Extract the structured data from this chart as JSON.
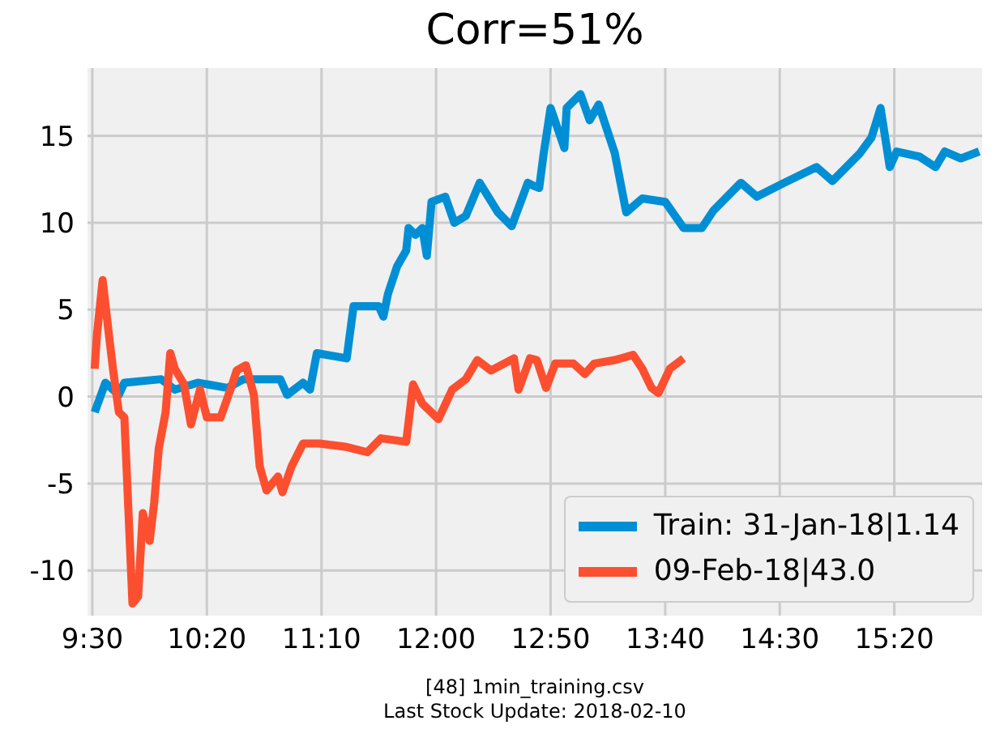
{
  "chart_data": {
    "type": "line",
    "title": "Corr=51%",
    "annotations": [
      "[48] 1min_training.csv",
      "Last Stock Update: 2018-02-10"
    ],
    "xlim": [
      9.465,
      15.972
    ],
    "ylim": [
      -12.6,
      18.9
    ],
    "xticks": [
      {
        "value": 9.5,
        "label": "9:30"
      },
      {
        "value": 10.333,
        "label": "10:20"
      },
      {
        "value": 11.167,
        "label": "11:10"
      },
      {
        "value": 12,
        "label": "12:00"
      },
      {
        "value": 12.833,
        "label": "12:50"
      },
      {
        "value": 13.667,
        "label": "13:40"
      },
      {
        "value": 14.5,
        "label": "14:30"
      },
      {
        "value": 15.333,
        "label": "15:20"
      }
    ],
    "yticks": [
      -10,
      -5,
      0,
      5,
      10,
      15
    ],
    "grid": true,
    "legend": "bottom right",
    "line_style": "solid",
    "series": [
      {
        "name": "Train: 31-Jan-18|1.14",
        "color": "#008fd5",
        "x": [
          9.517,
          9.595,
          9.693,
          9.733,
          10.0,
          10.1,
          10.267,
          10.483,
          10.6,
          10.867,
          10.917,
          11.033,
          11.083,
          11.133,
          11.35,
          11.4,
          11.583,
          11.617,
          11.65,
          11.717,
          11.783,
          11.8,
          11.85,
          11.9,
          11.933,
          11.967,
          12.067,
          12.133,
          12.217,
          12.317,
          12.45,
          12.55,
          12.667,
          12.717,
          12.75,
          12.783,
          12.833,
          12.933,
          12.95,
          13.05,
          13.117,
          13.183,
          13.3,
          13.383,
          13.5,
          13.667,
          13.8,
          13.933,
          14.017,
          14.217,
          14.333,
          14.533,
          14.767,
          14.883,
          15.083,
          15.167,
          15.233,
          15.3,
          15.35,
          15.517,
          15.633,
          15.7,
          15.817,
          15.95
        ],
        "values": [
          -0.9,
          0.8,
          0.1,
          0.8,
          1.0,
          0.4,
          0.8,
          0.5,
          1.0,
          1.0,
          0.1,
          0.8,
          0.4,
          2.5,
          2.2,
          5.2,
          5.2,
          4.6,
          5.9,
          7.5,
          8.4,
          9.7,
          9.3,
          9.7,
          8.1,
          11.2,
          11.5,
          10.0,
          10.4,
          12.3,
          10.6,
          9.8,
          12.3,
          12.1,
          12.0,
          14.0,
          16.6,
          14.3,
          16.6,
          17.4,
          15.9,
          16.8,
          14.0,
          10.6,
          11.4,
          11.2,
          9.7,
          9.7,
          10.7,
          12.3,
          11.5,
          12.3,
          13.2,
          12.4,
          14.0,
          14.9,
          16.6,
          13.2,
          14.1,
          13.8,
          13.2,
          14.1,
          13.7,
          14.1
        ]
      },
      {
        "name": "09-Feb-18|43.0",
        "color": "#fc4f30",
        "x": [
          9.517,
          9.533,
          9.575,
          9.617,
          9.65,
          9.693,
          9.733,
          9.792,
          9.833,
          9.867,
          9.917,
          9.95,
          9.983,
          10.033,
          10.067,
          10.1,
          10.167,
          10.217,
          10.283,
          10.333,
          10.433,
          10.517,
          10.55,
          10.617,
          10.675,
          10.717,
          10.767,
          10.85,
          10.883,
          10.95,
          11.033,
          11.15,
          11.35,
          11.5,
          11.6,
          11.783,
          11.833,
          11.9,
          12.017,
          12.117,
          12.217,
          12.3,
          12.4,
          12.567,
          12.6,
          12.683,
          12.733,
          12.8,
          12.867,
          13.0,
          13.083,
          13.15,
          13.3,
          13.433,
          13.5,
          13.567,
          13.617,
          13.7,
          13.8
        ],
        "values": [
          1.6,
          3.5,
          6.7,
          3.8,
          1.6,
          -0.9,
          -1.2,
          -11.9,
          -11.5,
          -6.7,
          -8.3,
          -6.1,
          -3.0,
          -0.9,
          2.5,
          1.6,
          0.7,
          -1.6,
          0.4,
          -1.2,
          -1.2,
          0.7,
          1.5,
          1.8,
          0.1,
          -4.0,
          -5.4,
          -4.6,
          -5.5,
          -4.0,
          -2.7,
          -2.7,
          -2.9,
          -3.2,
          -2.4,
          -2.6,
          0.7,
          -0.4,
          -1.3,
          0.4,
          1.0,
          2.1,
          1.5,
          2.2,
          0.4,
          2.2,
          2.1,
          0.5,
          1.9,
          1.9,
          1.3,
          1.9,
          2.1,
          2.4,
          1.6,
          0.5,
          0.2,
          1.6,
          2.2
        ]
      }
    ]
  }
}
